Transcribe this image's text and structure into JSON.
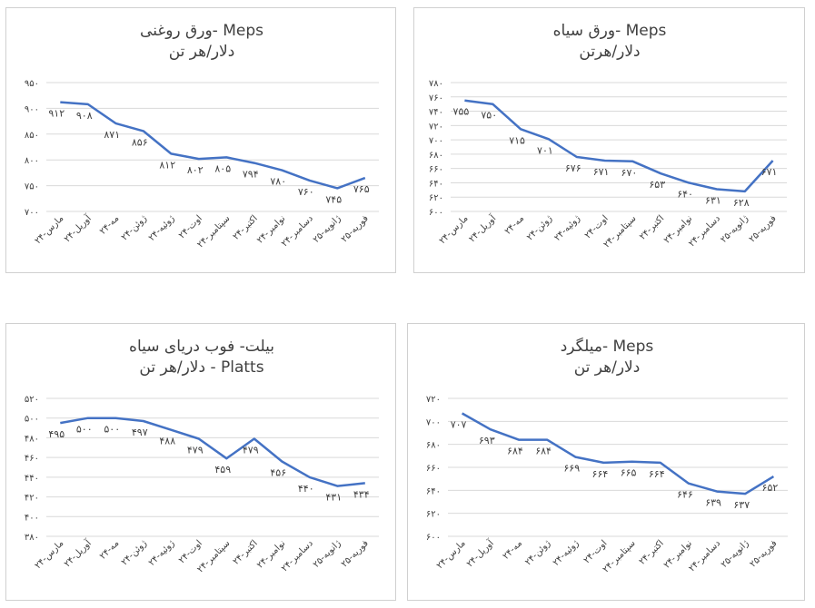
{
  "colors": {
    "line": "#4472C4",
    "grid": "#d9d9d9",
    "text": "#404040",
    "border": "#d0d0d0"
  },
  "chart_data": [
    {
      "type": "line",
      "title": "ورق روغنی- Meps",
      "subtitle": "دلار/هر تن",
      "categories": [
        "مارس-۲۴",
        "آوریل-۲۴",
        "مه-۲۴",
        "ژوئن-۲۴",
        "ژوئیه-۲۴",
        "اوت-۲۴",
        "سپتامبر-۲۴",
        "اکتبر-۲۴",
        "نوامبر-۲۴",
        "دسامبر-۲۴",
        "ژانویه-۲۵",
        "فوریه-۲۵"
      ],
      "values": [
        912,
        908,
        871,
        856,
        812,
        802,
        805,
        794,
        780,
        760,
        745,
        765
      ],
      "value_labels": [
        "۹۱۲",
        "۹۰۸",
        "۸۷۱",
        "۸۵۶",
        "۸۱۲",
        "۸۰۲",
        "۸۰۵",
        "۷۹۴",
        "۷۸۰",
        "۷۶۰",
        "۷۴۵",
        "۷۶۵"
      ],
      "ylim": [
        700,
        950
      ],
      "yticks": [
        950,
        900,
        850,
        800,
        750,
        700
      ],
      "ytick_labels": [
        "۹۵۰",
        "۹۰۰",
        "۸۵۰",
        "۸۰۰",
        "۷۵۰",
        "۷۰۰"
      ]
    },
    {
      "type": "line",
      "title": "ورق سیاه- Meps",
      "subtitle": "دلار/هرتن",
      "categories": [
        "مارس-۲۴",
        "آوریل-۲۴",
        "مه-۲۴",
        "ژوئن-۲۴",
        "ژوئیه-۲۴",
        "اوت-۲۴",
        "سپتامبر-۲۴",
        "اکتبر-۲۴",
        "نوامبر-۲۴",
        "دسامبر-۲۴",
        "ژانویه-۲۵",
        "فوریه-۲۵"
      ],
      "values": [
        755,
        750,
        715,
        701,
        676,
        671,
        670,
        653,
        640,
        631,
        628,
        671
      ],
      "value_labels": [
        "۷۵۵",
        "۷۵۰",
        "۷۱۵",
        "۷۰۱",
        "۶۷۶",
        "۶۷۱",
        "۶۷۰",
        "۶۵۳",
        "۶۴۰",
        "۶۳۱",
        "۶۲۸",
        "۶۷۱"
      ],
      "ylim": [
        600,
        780
      ],
      "yticks": [
        780,
        760,
        740,
        720,
        700,
        680,
        660,
        640,
        620,
        600
      ],
      "ytick_labels": [
        "۷۸۰",
        "۷۶۰",
        "۷۴۰",
        "۷۲۰",
        "۷۰۰",
        "۶۸۰",
        "۶۶۰",
        "۶۴۰",
        "۶۲۰",
        "۶۰۰"
      ]
    },
    {
      "type": "line",
      "title": "بیلت- فوب دریای سیاه",
      "subtitle": "دلار/هر تن - Platts",
      "categories": [
        "مارس-۲۴",
        "آوریل-۲۴",
        "مه-۲۴",
        "ژوئن-۲۴",
        "ژوئیه-۲۴",
        "اوت-۲۴",
        "سپتامبر-۲۴",
        "اکتبر-۲۴",
        "نوامبر-۲۴",
        "دسامبر-۲۴",
        "ژانویه-۲۵",
        "فوریه-۲۵"
      ],
      "values": [
        495,
        500,
        500,
        497,
        488,
        479,
        459,
        479,
        456,
        440,
        431,
        434
      ],
      "value_labels": [
        "۴۹۵",
        "۵۰۰",
        "۵۰۰",
        "۴۹۷",
        "۴۸۸",
        "۴۷۹",
        "۴۵۹",
        "۴۷۹",
        "۴۵۶",
        "۴۴۰",
        "۴۳۱",
        "۴۳۴"
      ],
      "ylim": [
        380,
        520
      ],
      "yticks": [
        520,
        500,
        480,
        460,
        440,
        420,
        400,
        380
      ],
      "ytick_labels": [
        "۵۲۰",
        "۵۰۰",
        "۴۸۰",
        "۴۶۰",
        "۴۴۰",
        "۴۲۰",
        "۴۰۰",
        "۳۸۰"
      ]
    },
    {
      "type": "line",
      "title": "میلگرد- Meps",
      "subtitle": "دلار/هر تن",
      "categories": [
        "مارس-۲۴",
        "آوریل-۲۴",
        "مه-۲۴",
        "ژوئن-۲۴",
        "ژوئیه-۲۴",
        "اوت-۲۴",
        "سپتامبر-۲۴",
        "اکتبر-۲۴",
        "نوامبر-۲۴",
        "دسامبر-۲۴",
        "ژانویه-۲۵",
        "فوریه-۲۵"
      ],
      "values": [
        707,
        693,
        684,
        684,
        669,
        664,
        665,
        664,
        646,
        639,
        637,
        652
      ],
      "value_labels": [
        "۷۰۷",
        "۶۹۳",
        "۶۸۴",
        "۶۸۴",
        "۶۶۹",
        "۶۶۴",
        "۶۶۵",
        "۶۶۴",
        "۶۴۶",
        "۶۳۹",
        "۶۳۷",
        "۶۵۲"
      ],
      "ylim": [
        600,
        720
      ],
      "yticks": [
        720,
        700,
        680,
        660,
        640,
        620,
        600
      ],
      "ytick_labels": [
        "۷۲۰",
        "۷۰۰",
        "۶۸۰",
        "۶۶۰",
        "۶۴۰",
        "۶۲۰",
        "۶۰۰"
      ]
    }
  ]
}
